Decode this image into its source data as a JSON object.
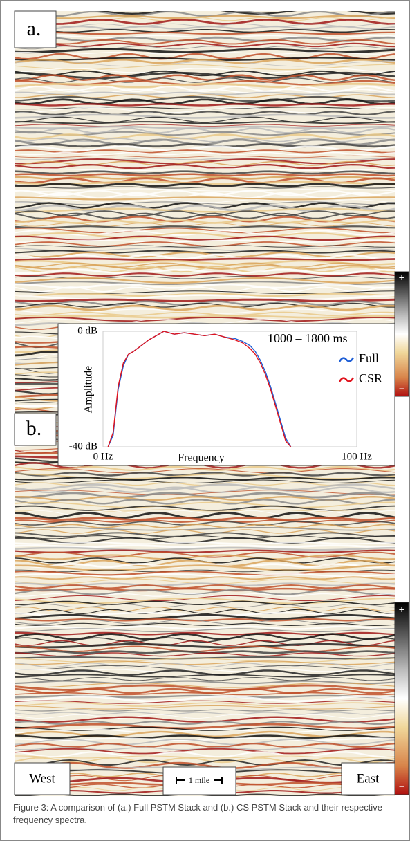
{
  "panels": [
    {
      "label": "a."
    },
    {
      "label": "b."
    }
  ],
  "labels": {
    "west": "West",
    "east": "East",
    "scale": "1 mile"
  },
  "chart_data": {
    "type": "line",
    "annotation": "1000 – 1800 ms",
    "x_label": "Frequency",
    "y_label": "Amplitude",
    "x": [
      2,
      4,
      5,
      6,
      8,
      10,
      12,
      15,
      18,
      20,
      24,
      28,
      32,
      36,
      40,
      44,
      48,
      52,
      55,
      58,
      60,
      62,
      64,
      66,
      68,
      70,
      72,
      74
    ],
    "series": [
      {
        "name": "Full",
        "color": "#1f5fd6",
        "values": [
          -40,
          -36,
          -28,
          -20,
          -12,
          -8,
          -7,
          -5,
          -3,
          -2,
          0,
          -1,
          -0.5,
          -1,
          -1.5,
          -1,
          -2,
          -2.5,
          -3.5,
          -5,
          -7,
          -10,
          -14,
          -19,
          -25,
          -31,
          -37,
          -40
        ]
      },
      {
        "name": "CSR",
        "color": "#e0141e",
        "values": [
          -40,
          -35,
          -27,
          -19,
          -11,
          -8,
          -7,
          -5,
          -3,
          -2,
          0,
          -1,
          -0.5,
          -1,
          -1.5,
          -1,
          -2,
          -3,
          -4,
          -6,
          -8,
          -11,
          -15,
          -20,
          -26,
          -32,
          -38,
          -40
        ]
      }
    ],
    "xlim": [
      0,
      100
    ],
    "xticks": [
      {
        "value": 0,
        "label": "0 Hz"
      },
      {
        "value": 100,
        "label": "100 Hz"
      }
    ],
    "ylim": [
      -40,
      0
    ],
    "yticks": [
      {
        "value": 0,
        "label": "0 dB"
      },
      {
        "value": -40,
        "label": "-40 dB"
      }
    ],
    "grid": true,
    "legend": "right"
  },
  "caption": "Figure 3:  A comparison of (a.) Full PSTM Stack and (b.) CS PSTM Stack and their respective frequency spectra."
}
